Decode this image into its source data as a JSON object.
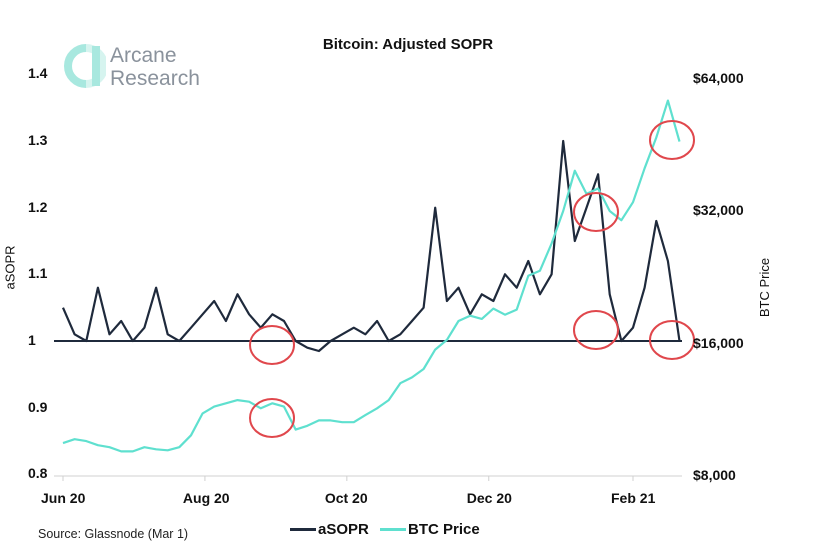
{
  "chart_data": {
    "type": "line",
    "title": "Bitcoin: Adjusted SOPR",
    "ylabel": "aSOPR",
    "y2label": "BTC Price",
    "ylim": [
      0.8,
      1.4
    ],
    "y2lim": [
      8000,
      64000
    ],
    "y2scale": "log2",
    "yticks": [
      "1.4",
      "1.3",
      "1.2",
      "1.1",
      "1",
      "0.9",
      "0.8"
    ],
    "y2ticks": [
      "$64,000",
      "$32,000",
      "$16,000",
      "$8,000"
    ],
    "xticks": [
      "Jun 20",
      "Aug 20",
      "Oct 20",
      "Dec 20",
      "Feb 21"
    ],
    "reference_line": 1,
    "grid": false,
    "legend_position": "bottom",
    "x": [
      "2020-06-01",
      "2020-06-06",
      "2020-06-11",
      "2020-06-16",
      "2020-06-21",
      "2020-06-26",
      "2020-07-01",
      "2020-07-06",
      "2020-07-11",
      "2020-07-16",
      "2020-07-21",
      "2020-07-26",
      "2020-07-31",
      "2020-08-05",
      "2020-08-10",
      "2020-08-15",
      "2020-08-20",
      "2020-08-25",
      "2020-08-30",
      "2020-09-04",
      "2020-09-09",
      "2020-09-14",
      "2020-09-19",
      "2020-09-24",
      "2020-09-29",
      "2020-10-04",
      "2020-10-09",
      "2020-10-14",
      "2020-10-19",
      "2020-10-24",
      "2020-10-29",
      "2020-11-03",
      "2020-11-08",
      "2020-11-13",
      "2020-11-18",
      "2020-11-23",
      "2020-11-28",
      "2020-12-03",
      "2020-12-08",
      "2020-12-13",
      "2020-12-18",
      "2020-12-23",
      "2020-12-28",
      "2021-01-02",
      "2021-01-07",
      "2021-01-12",
      "2021-01-17",
      "2021-01-22",
      "2021-01-27",
      "2021-02-01",
      "2021-02-06",
      "2021-02-11",
      "2021-02-16",
      "2021-02-21"
    ],
    "series": [
      {
        "name": "aSOPR",
        "axis": "left",
        "color": "#1f2a3c",
        "values": [
          1.05,
          1.01,
          1.0,
          1.08,
          1.01,
          1.03,
          1.0,
          1.02,
          1.08,
          1.01,
          1.0,
          1.02,
          1.04,
          1.06,
          1.03,
          1.07,
          1.04,
          1.02,
          1.04,
          1.03,
          1.0,
          0.99,
          0.985,
          1.0,
          1.01,
          1.02,
          1.01,
          1.03,
          1.0,
          1.01,
          1.03,
          1.05,
          1.2,
          1.06,
          1.08,
          1.04,
          1.07,
          1.06,
          1.1,
          1.08,
          1.12,
          1.07,
          1.1,
          1.3,
          1.15,
          1.2,
          1.25,
          1.07,
          1.0,
          1.02,
          1.08,
          1.18,
          1.12,
          1.0
        ]
      },
      {
        "name": "BTC Price",
        "axis": "right",
        "color": "#5fe0cf",
        "values": [
          9500,
          9700,
          9600,
          9400,
          9300,
          9100,
          9100,
          9300,
          9200,
          9150,
          9300,
          9900,
          11100,
          11500,
          11700,
          11900,
          11800,
          11400,
          11700,
          11500,
          10200,
          10400,
          10700,
          10700,
          10600,
          10600,
          11000,
          11400,
          11900,
          13000,
          13400,
          14000,
          15500,
          16300,
          18000,
          18500,
          18200,
          19200,
          18600,
          19100,
          22800,
          23400,
          27000,
          32000,
          39500,
          35000,
          36000,
          32000,
          30500,
          33500,
          40000,
          47000,
          57000,
          46000
        ]
      }
    ],
    "annotation_color": "#e0474c"
  },
  "logo": {
    "line1": "Arcane",
    "line2": "Research"
  },
  "source": "Source: Glassnode (Mar 1)"
}
